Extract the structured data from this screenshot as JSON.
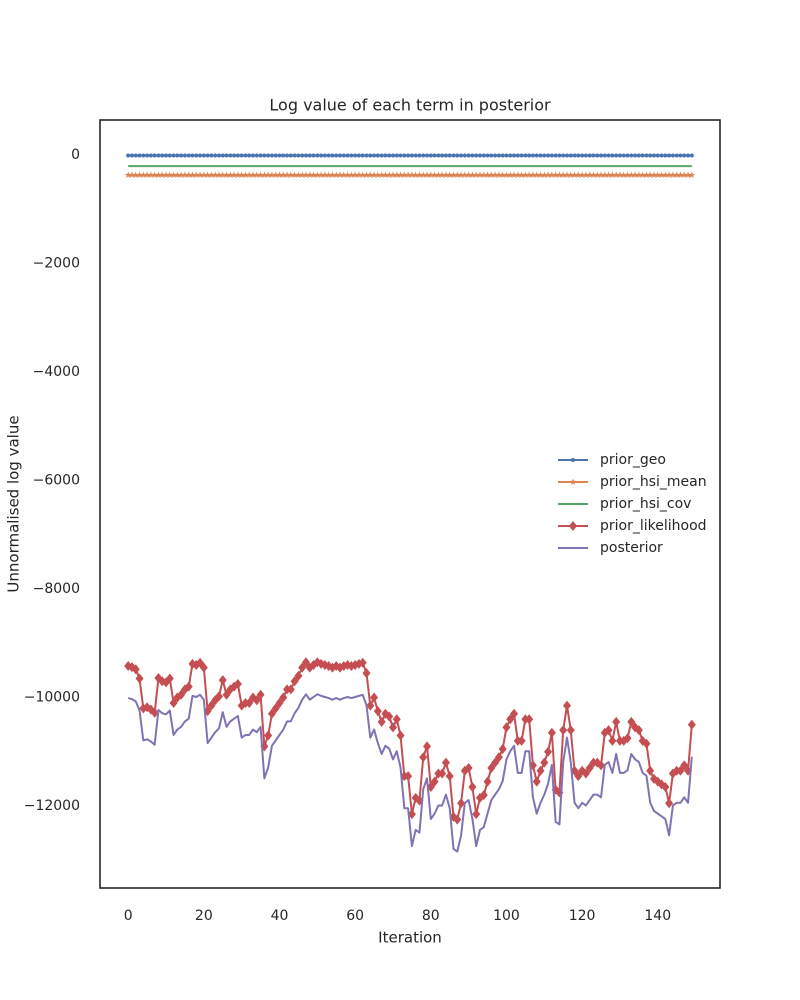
{
  "chart_data": {
    "type": "line",
    "title": "Log value of each term in posterior",
    "xlabel": "Iteration",
    "ylabel": "Unnormalised log value",
    "x": [
      0,
      1,
      2,
      3,
      4,
      5,
      6,
      7,
      8,
      9,
      10,
      11,
      12,
      13,
      14,
      15,
      16,
      17,
      18,
      19,
      20,
      21,
      22,
      23,
      24,
      25,
      26,
      27,
      28,
      29,
      30,
      31,
      32,
      33,
      34,
      35,
      36,
      37,
      38,
      39,
      40,
      41,
      42,
      43,
      44,
      45,
      46,
      47,
      48,
      49,
      50,
      51,
      52,
      53,
      54,
      55,
      56,
      57,
      58,
      59,
      60,
      61,
      62,
      63,
      64,
      65,
      66,
      67,
      68,
      69,
      70,
      71,
      72,
      73,
      74,
      75,
      76,
      77,
      78,
      79,
      80,
      81,
      82,
      83,
      84,
      85,
      86,
      87,
      88,
      89,
      90,
      91,
      92,
      93,
      94,
      95,
      96,
      97,
      98,
      99,
      100,
      101,
      102,
      103,
      104,
      105,
      106,
      107,
      108,
      109,
      110,
      111,
      112,
      113,
      114,
      115,
      116,
      117,
      118,
      119,
      120,
      121,
      122,
      123,
      124,
      125,
      126,
      127,
      128,
      129,
      130,
      131,
      132,
      133,
      134,
      135,
      136,
      137,
      138,
      139,
      140,
      141,
      142,
      143,
      144,
      145,
      146,
      147,
      148,
      149
    ],
    "series": [
      {
        "name": "prior_geo",
        "color": "#4c72b0",
        "marker": "o",
        "values": [
          -10,
          -10,
          -10,
          -10,
          -10,
          -10,
          -10,
          -10,
          -10,
          -10,
          -10,
          -10,
          -10,
          -10,
          -10,
          -10,
          -10,
          -10,
          -10,
          -10,
          -10,
          -10,
          -10,
          -10,
          -10,
          -10,
          -10,
          -10,
          -10,
          -10,
          -10,
          -10,
          -10,
          -10,
          -10,
          -10,
          -10,
          -10,
          -10,
          -10,
          -10,
          -10,
          -10,
          -10,
          -10,
          -10,
          -10,
          -10,
          -10,
          -10,
          -10,
          -10,
          -10,
          -10,
          -10,
          -10,
          -10,
          -10,
          -10,
          -10,
          -10,
          -10,
          -10,
          -10,
          -10,
          -10,
          -10,
          -10,
          -10,
          -10,
          -10,
          -10,
          -10,
          -10,
          -10,
          -10,
          -10,
          -10,
          -10,
          -10,
          -10,
          -10,
          -10,
          -10,
          -10,
          -10,
          -10,
          -10,
          -10,
          -10,
          -10,
          -10,
          -10,
          -10,
          -10,
          -10,
          -10,
          -10,
          -10,
          -10,
          -10,
          -10,
          -10,
          -10,
          -10,
          -10,
          -10,
          -10,
          -10,
          -10,
          -10,
          -10,
          -10,
          -10,
          -10,
          -10,
          -10,
          -10,
          -10,
          -10,
          -10,
          -10,
          -10,
          -10,
          -10,
          -10,
          -10,
          -10,
          -10,
          -10,
          -10,
          -10,
          -10,
          -10,
          -10,
          -10,
          -10,
          -10,
          -10,
          -10,
          -10,
          -10,
          -10,
          -10,
          -10,
          -10,
          -10,
          -10,
          -10,
          -10
        ]
      },
      {
        "name": "prior_hsi_mean",
        "color": "#dd8452",
        "marker": "*",
        "values": [
          -370,
          -370,
          -370,
          -370,
          -370,
          -370,
          -370,
          -370,
          -370,
          -370,
          -370,
          -370,
          -370,
          -370,
          -370,
          -370,
          -370,
          -370,
          -370,
          -370,
          -370,
          -370,
          -370,
          -370,
          -370,
          -370,
          -370,
          -370,
          -370,
          -370,
          -370,
          -370,
          -370,
          -370,
          -370,
          -370,
          -370,
          -370,
          -370,
          -370,
          -370,
          -370,
          -370,
          -370,
          -370,
          -370,
          -370,
          -370,
          -370,
          -370,
          -370,
          -370,
          -370,
          -370,
          -370,
          -370,
          -370,
          -370,
          -370,
          -370,
          -370,
          -370,
          -370,
          -370,
          -370,
          -370,
          -370,
          -370,
          -370,
          -370,
          -370,
          -370,
          -370,
          -370,
          -370,
          -370,
          -370,
          -370,
          -370,
          -370,
          -370,
          -370,
          -370,
          -370,
          -370,
          -370,
          -370,
          -370,
          -370,
          -370,
          -370,
          -370,
          -370,
          -370,
          -370,
          -370,
          -370,
          -370,
          -370,
          -370,
          -370,
          -370,
          -370,
          -370,
          -370,
          -370,
          -370,
          -370,
          -370,
          -370,
          -370,
          -370,
          -370,
          -370,
          -370,
          -370,
          -370,
          -370,
          -370,
          -370,
          -370,
          -370,
          -370,
          -370,
          -370,
          -370,
          -370,
          -370,
          -370,
          -370,
          -370,
          -370,
          -370,
          -370,
          -370,
          -370,
          -370,
          -370,
          -370,
          -370,
          -370,
          -370,
          -370,
          -370,
          -370,
          -370,
          -370,
          -370,
          -370,
          -370
        ]
      },
      {
        "name": "prior_hsi_cov",
        "color": "#55a868",
        "values": [
          -205,
          -205,
          -205,
          -205,
          -205,
          -205,
          -205,
          -205,
          -205,
          -205,
          -205,
          -205,
          -205,
          -205,
          -205,
          -205,
          -205,
          -205,
          -205,
          -205,
          -205,
          -205,
          -205,
          -205,
          -205,
          -205,
          -205,
          -205,
          -205,
          -205,
          -205,
          -205,
          -205,
          -205,
          -205,
          -205,
          -205,
          -205,
          -205,
          -205,
          -205,
          -205,
          -205,
          -205,
          -205,
          -205,
          -205,
          -205,
          -205,
          -205,
          -205,
          -205,
          -205,
          -205,
          -205,
          -205,
          -205,
          -205,
          -205,
          -205,
          -205,
          -205,
          -205,
          -205,
          -205,
          -205,
          -205,
          -205,
          -205,
          -205,
          -205,
          -205,
          -205,
          -205,
          -205,
          -205,
          -205,
          -205,
          -205,
          -205,
          -205,
          -205,
          -205,
          -205,
          -205,
          -205,
          -205,
          -205,
          -205,
          -205,
          -205,
          -205,
          -205,
          -205,
          -205,
          -205,
          -205,
          -205,
          -205,
          -205,
          -205,
          -205,
          -205,
          -205,
          -205,
          -205,
          -205,
          -205,
          -205,
          -205,
          -205,
          -205,
          -205,
          -205,
          -205,
          -205,
          -205,
          -205,
          -205,
          -205,
          -205,
          -205,
          -205,
          -205,
          -205,
          -205,
          -205,
          -205,
          -205,
          -205,
          -205,
          -205,
          -205,
          -205,
          -205,
          -205,
          -205,
          -205,
          -205,
          -205,
          -205,
          -205,
          -205,
          -205,
          -205,
          -205,
          -205,
          -205,
          -205,
          -205
        ]
      },
      {
        "name": "prior_likelihood",
        "color": "#c44e52",
        "marker": "D",
        "values": [
          -9420,
          -9440,
          -9480,
          -9650,
          -10200,
          -10180,
          -10220,
          -10280,
          -9640,
          -9700,
          -9720,
          -9650,
          -10100,
          -10000,
          -9950,
          -9850,
          -9800,
          -9380,
          -9400,
          -9360,
          -9450,
          -10250,
          -10150,
          -10050,
          -9980,
          -9680,
          -9950,
          -9850,
          -9800,
          -9750,
          -10150,
          -10100,
          -10100,
          -10000,
          -10050,
          -9950,
          -10900,
          -10700,
          -10300,
          -10200,
          -10100,
          -10000,
          -9850,
          -9850,
          -9700,
          -9600,
          -9450,
          -9350,
          -9450,
          -9400,
          -9350,
          -9380,
          -9400,
          -9420,
          -9450,
          -9420,
          -9450,
          -9420,
          -9400,
          -9420,
          -9400,
          -9380,
          -9360,
          -9550,
          -10150,
          -10000,
          -10250,
          -10450,
          -10300,
          -10350,
          -10550,
          -10400,
          -10700,
          -11450,
          -11450,
          -12150,
          -11850,
          -11900,
          -11100,
          -10900,
          -11650,
          -11550,
          -11400,
          -11400,
          -11200,
          -11450,
          -12200,
          -12250,
          -11950,
          -11350,
          -11300,
          -11650,
          -12150,
          -11850,
          -11800,
          -11550,
          -11300,
          -11200,
          -11100,
          -10950,
          -10550,
          -10400,
          -10300,
          -10800,
          -10800,
          -10400,
          -10400,
          -11250,
          -11550,
          -11350,
          -11200,
          -11000,
          -10650,
          -11700,
          -11750,
          -10600,
          -10150,
          -10600,
          -11350,
          -11450,
          -11350,
          -11400,
          -11300,
          -11200,
          -11200,
          -11250,
          -10650,
          -10600,
          -10800,
          -10450,
          -10800,
          -10800,
          -10750,
          -10450,
          -10550,
          -10600,
          -10800,
          -10850,
          -11350,
          -11500,
          -11550,
          -11600,
          -11650,
          -11950,
          -11400,
          -11350,
          -11350,
          -11250,
          -11350,
          -10500
        ]
      },
      {
        "name": "posterior",
        "color": "#8172b3",
        "values": [
          -10010,
          -10030,
          -10070,
          -10240,
          -10790,
          -10770,
          -10810,
          -10870,
          -10230,
          -10290,
          -10310,
          -10240,
          -10690,
          -10590,
          -10540,
          -10440,
          -10390,
          -9970,
          -9990,
          -9950,
          -10040,
          -10840,
          -10740,
          -10640,
          -10570,
          -10270,
          -10540,
          -10440,
          -10390,
          -10340,
          -10740,
          -10690,
          -10690,
          -10590,
          -10640,
          -10540,
          -11490,
          -11290,
          -10890,
          -10790,
          -10690,
          -10590,
          -10440,
          -10440,
          -10290,
          -10190,
          -10040,
          -9940,
          -10040,
          -9990,
          -9940,
          -9970,
          -9990,
          -10010,
          -10040,
          -10010,
          -10040,
          -10010,
          -9990,
          -10010,
          -9990,
          -9970,
          -9950,
          -10140,
          -10740,
          -10590,
          -10840,
          -11040,
          -10890,
          -10940,
          -11140,
          -10990,
          -11290,
          -12040,
          -12040,
          -12740,
          -12440,
          -12490,
          -11690,
          -11490,
          -12240,
          -12140,
          -11990,
          -11990,
          -11790,
          -12040,
          -12790,
          -12840,
          -12540,
          -11940,
          -11890,
          -12240,
          -12740,
          -12440,
          -12390,
          -12140,
          -11890,
          -11790,
          -11690,
          -11540,
          -11140,
          -10990,
          -10890,
          -11390,
          -11390,
          -10990,
          -10990,
          -11840,
          -12140,
          -11940,
          -11790,
          -11590,
          -11240,
          -12290,
          -12340,
          -11190,
          -10740,
          -11190,
          -11940,
          -12040,
          -11940,
          -11990,
          -11890,
          -11790,
          -11790,
          -11840,
          -11240,
          -11190,
          -11390,
          -11040,
          -11390,
          -11390,
          -11340,
          -11040,
          -11140,
          -11190,
          -11390,
          -11440,
          -11940,
          -12090,
          -12140,
          -12190,
          -12240,
          -12540,
          -11990,
          -11940,
          -11940,
          -11840,
          -11940,
          -11090
        ]
      }
    ],
    "xlim": [
      -7.45,
      156.45
    ],
    "xticks": [
      0,
      20,
      40,
      60,
      80,
      100,
      120,
      140
    ],
    "ylim": [
      -13511,
      645
    ],
    "yticks": [
      0,
      {
        "value": -2000,
        "label": "−2000"
      },
      {
        "value": -4000,
        "label": "−4000"
      },
      {
        "value": -6000,
        "label": "−6000"
      },
      {
        "value": -8000,
        "label": "−8000"
      },
      {
        "value": -10000,
        "label": "−10000"
      },
      {
        "value": -12000,
        "label": "−12000"
      }
    ],
    "grid": false,
    "legend": "center right"
  }
}
